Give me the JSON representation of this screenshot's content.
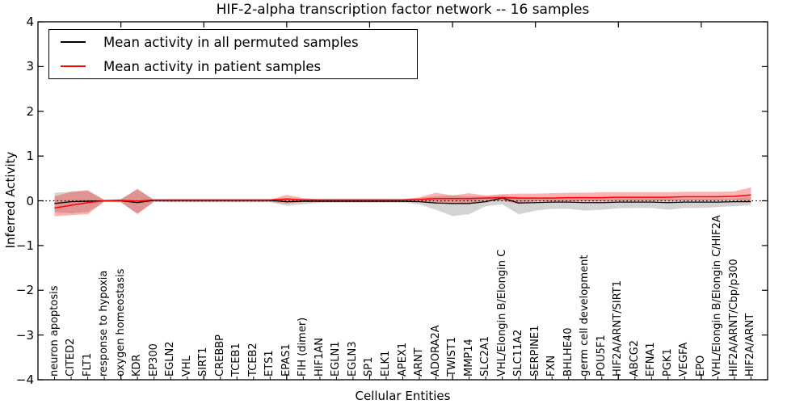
{
  "figure": {
    "background": "#ffffff"
  },
  "chart_data": {
    "type": "line",
    "title": "HIF-2-alpha transcription factor network -- 16 samples",
    "xlabel": "Cellular Entities",
    "ylabel": "Inferred Activity",
    "ylim": [
      -4,
      4
    ],
    "yticks": [
      4,
      3,
      2,
      1,
      0,
      -1,
      -2,
      -3,
      -4
    ],
    "ytick_labels": [
      "4",
      "3",
      "2",
      "1",
      "0",
      "−1",
      "−2",
      "−3",
      "−4"
    ],
    "zero_line": 0,
    "legend_position": "upper left",
    "grid": false,
    "top_major_tick_every": 5,
    "categories": [
      "neuron apoptosis",
      "CITED2",
      "FLT1",
      "response to hypoxia",
      "oxygen homeostasis",
      "KDR",
      "EP300",
      "EGLN2",
      "VHL",
      "SIRT1",
      "CREBBP",
      "TCEB1",
      "TCEB2",
      "ETS1",
      "EPAS1",
      "FIH (dimer)",
      "HIF1AN",
      "EGLN1",
      "EGLN3",
      "SP1",
      "ELK1",
      "APEX1",
      "ARNT",
      "ADORA2A",
      "TWIST1",
      "MMP14",
      "SLC2A1",
      "VHL/Elongin B/Elongin C",
      "SLC11A2",
      "SERPINE1",
      "FXN",
      "BHLHE40",
      "germ cell development",
      "POU5F1",
      "HIF2A/ARNT/SIRT1",
      "ABCG2",
      "EFNA1",
      "PGK1",
      "VEGFA",
      "EPO",
      "VHL/Elongin B/Elongin C/HIF2A",
      "HIF2A/ARNT/Cbp/p300",
      "HIF2A/ARNT"
    ],
    "series": [
      {
        "name": "Mean activity in all permuted samples",
        "color": "#000000",
        "band_color": "rgba(130,130,130,0.35)",
        "mean": [
          -0.06,
          -0.02,
          -0.01,
          0,
          0,
          -0.04,
          0.01,
          0.01,
          0.01,
          0.01,
          0.01,
          0.01,
          0.01,
          0.01,
          -0.02,
          -0.01,
          -0.01,
          -0.01,
          -0.01,
          -0.01,
          -0.01,
          -0.01,
          -0.02,
          -0.05,
          -0.06,
          -0.06,
          -0.02,
          0.06,
          -0.05,
          -0.04,
          -0.03,
          -0.03,
          -0.04,
          -0.04,
          -0.03,
          -0.03,
          -0.03,
          -0.04,
          -0.03,
          -0.03,
          -0.03,
          -0.02,
          -0.02
        ],
        "band_low": [
          -0.25,
          -0.28,
          -0.25,
          -0.02,
          -0.04,
          -0.28,
          -0.02,
          -0.03,
          -0.03,
          -0.03,
          -0.03,
          -0.03,
          -0.03,
          -0.03,
          -0.11,
          -0.08,
          -0.04,
          -0.04,
          -0.04,
          -0.04,
          -0.04,
          -0.04,
          -0.08,
          -0.2,
          -0.34,
          -0.3,
          -0.12,
          -0.08,
          -0.3,
          -0.22,
          -0.18,
          -0.18,
          -0.22,
          -0.2,
          -0.17,
          -0.16,
          -0.16,
          -0.2,
          -0.16,
          -0.16,
          -0.14,
          -0.12,
          -0.1
        ],
        "band_high": [
          0.18,
          0.2,
          0.22,
          0.02,
          0.04,
          0.25,
          0.02,
          0.03,
          0.03,
          0.03,
          0.03,
          0.03,
          0.03,
          0.03,
          0.06,
          0.04,
          0.04,
          0.04,
          0.04,
          0.04,
          0.04,
          0.04,
          0.06,
          0.1,
          0.12,
          0.1,
          0.1,
          0.12,
          0.08,
          0.05,
          0.05,
          0.05,
          0.05,
          0.05,
          0.05,
          0.05,
          0.05,
          0.05,
          0.05,
          0.05,
          0.05,
          0.06,
          0.08
        ]
      },
      {
        "name": "Mean activity in patient samples",
        "color": "#ff0000",
        "band_color": "rgba(255,0,0,0.30)",
        "mean": [
          -0.16,
          -0.1,
          -0.04,
          0,
          0.01,
          -0.01,
          0.02,
          0.02,
          0.02,
          0.02,
          0.02,
          0.02,
          0.02,
          0.02,
          0.04,
          0.02,
          0.02,
          0.02,
          0.02,
          0.02,
          0.02,
          0.02,
          0.03,
          0.05,
          0.05,
          0.05,
          0.06,
          0.07,
          0.06,
          0.06,
          0.06,
          0.07,
          0.07,
          0.07,
          0.08,
          0.08,
          0.08,
          0.08,
          0.09,
          0.09,
          0.09,
          0.1,
          0.13
        ],
        "band_low": [
          -0.35,
          -0.32,
          -0.3,
          -0.02,
          -0.03,
          -0.3,
          -0.02,
          -0.03,
          -0.03,
          -0.03,
          -0.03,
          -0.03,
          -0.03,
          -0.03,
          -0.06,
          -0.03,
          -0.03,
          -0.03,
          -0.03,
          -0.03,
          -0.03,
          -0.03,
          -0.02,
          -0.05,
          -0.04,
          -0.05,
          0,
          0,
          -0.07,
          -0.01,
          -0.01,
          -0.01,
          -0.01,
          -0.01,
          0,
          0,
          0,
          0,
          0.01,
          0.01,
          0.01,
          0.02,
          -0.02
        ],
        "band_high": [
          0.1,
          0.2,
          0.24,
          0.02,
          0.03,
          0.27,
          0.02,
          0.03,
          0.03,
          0.03,
          0.03,
          0.03,
          0.03,
          0.03,
          0.13,
          0.06,
          0.03,
          0.03,
          0.03,
          0.03,
          0.03,
          0.03,
          0.08,
          0.18,
          0.12,
          0.17,
          0.12,
          0.15,
          0.16,
          0.16,
          0.17,
          0.18,
          0.18,
          0.19,
          0.19,
          0.19,
          0.19,
          0.19,
          0.2,
          0.2,
          0.2,
          0.21,
          0.3
        ]
      }
    ]
  }
}
